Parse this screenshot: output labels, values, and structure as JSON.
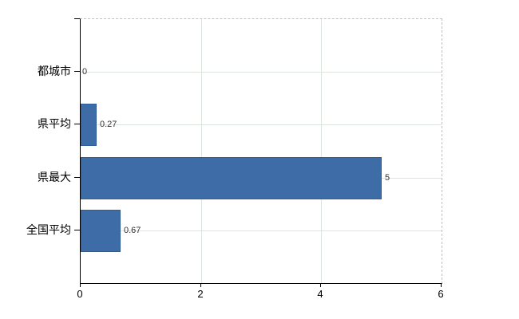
{
  "chart_data": {
    "type": "bar",
    "orientation": "horizontal",
    "title": "",
    "categories": [
      "都城市",
      "県平均",
      "県最大",
      "全国平均"
    ],
    "values": [
      0,
      0.27,
      5,
      0.67
    ],
    "value_labels": [
      "0",
      "0.27",
      "5",
      "0.67"
    ],
    "xlim": [
      0,
      6
    ],
    "x_tick_labels": [
      "0",
      "2",
      "4",
      "6"
    ],
    "x_tick_values": [
      0,
      2,
      4,
      6
    ],
    "grid": true,
    "legend": false,
    "colors": {
      "bar_fill": "#3d6ca7",
      "bar_border": "#2e5d99",
      "gridline": "#dde3dd",
      "axis": "#000000",
      "frame_dashed": "#c0c0c0",
      "value_text": "#333333",
      "label_text": "#000000",
      "background": "#ffffff"
    }
  }
}
